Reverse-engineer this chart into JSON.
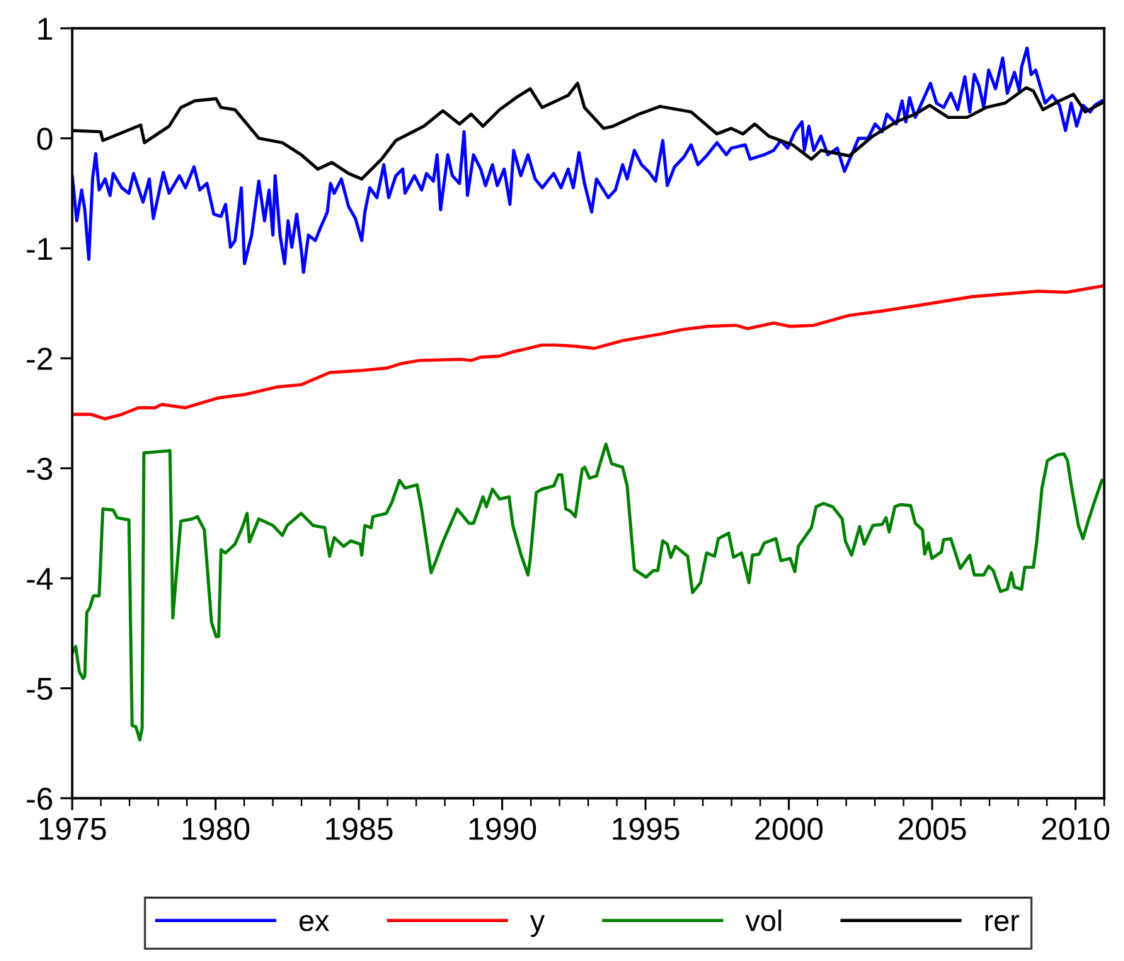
{
  "chart_data": {
    "type": "line",
    "xlim": [
      1975,
      2011
    ],
    "xticks": [
      1975,
      1980,
      1985,
      1990,
      1995,
      2000,
      2005,
      2010
    ],
    "ylim": [
      -6,
      1
    ],
    "yticks": [
      -6,
      -5,
      -4,
      -3,
      -2,
      -1,
      0,
      1
    ],
    "grid": false,
    "legend": "bottom",
    "marker": "none",
    "line_style": "solid",
    "series": [
      {
        "name": "ex",
        "color": "#0000ff",
        "x": [
          1975.0,
          1975.16,
          1975.33,
          1975.44,
          1975.58,
          1975.71,
          1975.82,
          1975.94,
          1976.15,
          1976.32,
          1976.43,
          1976.73,
          1976.98,
          1977.14,
          1977.47,
          1977.69,
          1977.83,
          1978.18,
          1978.38,
          1978.74,
          1978.95,
          1979.25,
          1979.45,
          1979.7,
          1979.94,
          1980.19,
          1980.35,
          1980.52,
          1980.68,
          1980.9,
          1981.01,
          1981.26,
          1981.51,
          1981.71,
          1981.87,
          1982.0,
          1982.08,
          1982.25,
          1982.41,
          1982.53,
          1982.66,
          1982.83,
          1982.99,
          1983.07,
          1983.24,
          1983.48,
          1983.65,
          1983.9,
          1984.01,
          1984.14,
          1984.39,
          1984.64,
          1984.88,
          1985.1,
          1985.21,
          1985.38,
          1985.63,
          1985.87,
          1986.04,
          1986.29,
          1986.53,
          1986.61,
          1986.94,
          1987.19,
          1987.36,
          1987.6,
          1987.73,
          1987.85,
          1988.1,
          1988.26,
          1988.51,
          1988.67,
          1988.79,
          1989.0,
          1989.25,
          1989.42,
          1989.66,
          1989.83,
          1990.07,
          1990.27,
          1990.4,
          1990.65,
          1990.9,
          1991.15,
          1991.4,
          1991.64,
          1991.8,
          1992.05,
          1992.3,
          1992.48,
          1992.68,
          1992.87,
          1993.12,
          1993.29,
          1993.7,
          1993.95,
          1994.2,
          1994.36,
          1994.61,
          1994.86,
          1995.1,
          1995.35,
          1995.6,
          1995.76,
          1996.01,
          1996.34,
          1996.59,
          1996.83,
          1997.16,
          1997.49,
          1997.82,
          1997.99,
          1998.48,
          1998.65,
          1999.14,
          1999.47,
          1999.72,
          1999.96,
          2000.21,
          2000.46,
          2000.54,
          2000.7,
          2000.87,
          2001.12,
          2001.36,
          2001.69,
          2001.94,
          2002.19,
          2002.43,
          2002.76,
          2003.01,
          2003.26,
          2003.42,
          2003.75,
          2003.95,
          2004.08,
          2004.21,
          2004.41,
          2004.94,
          2005.15,
          2005.4,
          2005.65,
          2005.89,
          2006.14,
          2006.31,
          2006.47,
          2006.64,
          2006.8,
          2006.97,
          2007.21,
          2007.46,
          2007.62,
          2007.87,
          2008.04,
          2008.12,
          2008.31,
          2008.45,
          2008.61,
          2008.94,
          2009.19,
          2009.44,
          2009.65,
          2009.85,
          2010.04,
          2010.26,
          2010.51,
          2010.67,
          2010.92
        ],
        "values": [
          -0.34,
          -0.75,
          -0.47,
          -0.65,
          -1.1,
          -0.37,
          -0.14,
          -0.47,
          -0.37,
          -0.52,
          -0.32,
          -0.45,
          -0.5,
          -0.32,
          -0.58,
          -0.37,
          -0.73,
          -0.31,
          -0.5,
          -0.34,
          -0.45,
          -0.26,
          -0.47,
          -0.41,
          -0.69,
          -0.71,
          -0.6,
          -0.99,
          -0.93,
          -0.45,
          -1.14,
          -0.88,
          -0.39,
          -0.75,
          -0.47,
          -0.88,
          -0.34,
          -0.88,
          -1.14,
          -0.75,
          -0.99,
          -0.69,
          -1.01,
          -1.22,
          -0.88,
          -0.93,
          -0.82,
          -0.67,
          -0.41,
          -0.5,
          -0.37,
          -0.62,
          -0.73,
          -0.93,
          -0.67,
          -0.45,
          -0.54,
          -0.24,
          -0.54,
          -0.34,
          -0.28,
          -0.5,
          -0.34,
          -0.47,
          -0.32,
          -0.39,
          -0.15,
          -0.65,
          -0.15,
          -0.34,
          -0.41,
          0.06,
          -0.52,
          -0.15,
          -0.28,
          -0.43,
          -0.24,
          -0.43,
          -0.28,
          -0.6,
          -0.11,
          -0.34,
          -0.15,
          -0.37,
          -0.45,
          -0.37,
          -0.32,
          -0.45,
          -0.28,
          -0.45,
          -0.13,
          -0.41,
          -0.67,
          -0.37,
          -0.54,
          -0.47,
          -0.24,
          -0.37,
          -0.11,
          -0.24,
          -0.3,
          -0.39,
          -0.02,
          -0.43,
          -0.26,
          -0.17,
          -0.06,
          -0.24,
          -0.15,
          -0.04,
          -0.15,
          -0.09,
          -0.06,
          -0.19,
          -0.15,
          -0.11,
          -0.02,
          -0.09,
          0.06,
          0.15,
          -0.11,
          0.11,
          -0.11,
          0.02,
          -0.15,
          -0.09,
          -0.3,
          -0.15,
          0.0,
          0.0,
          0.13,
          0.06,
          0.22,
          0.13,
          0.34,
          0.15,
          0.37,
          0.19,
          0.5,
          0.32,
          0.28,
          0.41,
          0.26,
          0.56,
          0.24,
          0.58,
          0.47,
          0.28,
          0.62,
          0.45,
          0.73,
          0.41,
          0.6,
          0.43,
          0.65,
          0.82,
          0.58,
          0.62,
          0.32,
          0.39,
          0.3,
          0.07,
          0.32,
          0.11,
          0.3,
          0.24,
          0.3,
          0.34
        ]
      },
      {
        "name": "y",
        "color": "#ff0000",
        "x": [
          1975.0,
          1975.66,
          1976.15,
          1976.73,
          1977.31,
          1977.88,
          1978.13,
          1978.95,
          1980.11,
          1981.01,
          1982.17,
          1982.99,
          1983.98,
          1985.13,
          1985.96,
          1986.45,
          1987.11,
          1988.59,
          1988.92,
          1989.25,
          1989.91,
          1990.4,
          1990.9,
          1991.39,
          1991.89,
          1992.55,
          1993.2,
          1994.2,
          1995.51,
          1996.26,
          1997.16,
          1998.15,
          1998.56,
          1999.47,
          2000.05,
          2000.87,
          2002.11,
          2003.26,
          2004.5,
          2006.39,
          2008.69,
          2009.68,
          2011.0
        ],
        "values": [
          -2.51,
          -2.51,
          -2.55,
          -2.51,
          -2.45,
          -2.45,
          -2.42,
          -2.45,
          -2.36,
          -2.33,
          -2.26,
          -2.24,
          -2.13,
          -2.11,
          -2.09,
          -2.05,
          -2.02,
          -2.01,
          -2.02,
          -1.99,
          -1.98,
          -1.94,
          -1.91,
          -1.88,
          -1.88,
          -1.89,
          -1.91,
          -1.84,
          -1.78,
          -1.74,
          -1.71,
          -1.7,
          -1.73,
          -1.68,
          -1.71,
          -1.7,
          -1.61,
          -1.57,
          -1.52,
          -1.44,
          -1.39,
          -1.4,
          -1.34
        ]
      },
      {
        "name": "vol",
        "color": "#008000",
        "x": [
          1975.0,
          1975.12,
          1975.25,
          1975.38,
          1975.44,
          1975.51,
          1975.61,
          1975.74,
          1975.94,
          1976.07,
          1976.43,
          1976.57,
          1976.98,
          1977.09,
          1977.22,
          1977.36,
          1977.44,
          1977.5,
          1978.41,
          1978.51,
          1978.62,
          1978.79,
          1979.2,
          1979.37,
          1979.61,
          1979.86,
          1980.02,
          1980.11,
          1980.19,
          1980.35,
          1980.68,
          1980.93,
          1981.1,
          1981.18,
          1981.51,
          1982.0,
          1982.33,
          1982.5,
          1982.99,
          1983.4,
          1983.81,
          1983.98,
          1984.14,
          1984.47,
          1984.72,
          1985.05,
          1985.1,
          1985.21,
          1985.43,
          1985.49,
          1985.96,
          1986.15,
          1986.42,
          1986.61,
          1987.03,
          1987.19,
          1987.52,
          1987.69,
          1987.93,
          1988.43,
          1988.84,
          1989.0,
          1989.33,
          1989.45,
          1989.66,
          1989.91,
          1990.24,
          1990.37,
          1990.65,
          1990.9,
          1990.98,
          1991.19,
          1991.39,
          1991.8,
          1991.96,
          1992.08,
          1992.22,
          1992.38,
          1992.55,
          1992.79,
          1992.88,
          1993.04,
          1993.29,
          1993.41,
          1993.62,
          1993.82,
          1994.2,
          1994.36,
          1994.61,
          1995.02,
          1995.27,
          1995.43,
          1995.6,
          1995.76,
          1995.88,
          1996.04,
          1996.47,
          1996.64,
          1996.92,
          1997.13,
          1997.41,
          1997.54,
          1997.9,
          1998.07,
          1998.35,
          1998.61,
          1998.73,
          1998.97,
          1999.14,
          1999.55,
          1999.72,
          2000.05,
          2000.21,
          2000.33,
          2000.79,
          2000.95,
          2001.2,
          2001.53,
          2001.86,
          2001.97,
          2002.19,
          2002.47,
          2002.63,
          2002.93,
          2003.26,
          2003.39,
          2003.5,
          2003.7,
          2003.88,
          2004.25,
          2004.41,
          2004.66,
          2004.74,
          2004.87,
          2004.99,
          2005.32,
          2005.4,
          2005.65,
          2005.98,
          2006.31,
          2006.47,
          2006.8,
          2006.97,
          2007.13,
          2007.38,
          2007.62,
          2007.76,
          2007.87,
          2008.12,
          2008.23,
          2008.53,
          2008.65,
          2008.83,
          2009.02,
          2009.35,
          2009.6,
          2009.72,
          2009.85,
          2010.1,
          2010.26,
          2010.42,
          2010.64,
          2010.92
        ],
        "values": [
          -4.68,
          -4.62,
          -4.85,
          -4.91,
          -4.89,
          -4.31,
          -4.27,
          -4.16,
          -4.16,
          -3.37,
          -3.38,
          -3.45,
          -3.47,
          -5.34,
          -5.35,
          -5.47,
          -5.36,
          -2.86,
          -2.84,
          -4.36,
          -4.01,
          -3.48,
          -3.46,
          -3.44,
          -3.56,
          -4.4,
          -4.53,
          -4.53,
          -3.74,
          -3.77,
          -3.69,
          -3.54,
          -3.41,
          -3.67,
          -3.46,
          -3.52,
          -3.61,
          -3.52,
          -3.41,
          -3.52,
          -3.54,
          -3.8,
          -3.63,
          -3.71,
          -3.66,
          -3.69,
          -3.79,
          -3.52,
          -3.54,
          -3.44,
          -3.41,
          -3.31,
          -3.11,
          -3.18,
          -3.15,
          -3.37,
          -3.95,
          -3.84,
          -3.67,
          -3.37,
          -3.5,
          -3.5,
          -3.26,
          -3.35,
          -3.19,
          -3.28,
          -3.26,
          -3.52,
          -3.78,
          -3.97,
          -3.82,
          -3.22,
          -3.19,
          -3.16,
          -3.06,
          -3.06,
          -3.37,
          -3.39,
          -3.44,
          -3.01,
          -2.99,
          -3.09,
          -3.07,
          -2.96,
          -2.78,
          -2.96,
          -2.99,
          -3.16,
          -3.92,
          -3.99,
          -3.93,
          -3.93,
          -3.66,
          -3.69,
          -3.81,
          -3.71,
          -3.8,
          -4.13,
          -4.04,
          -3.77,
          -3.8,
          -3.64,
          -3.59,
          -3.81,
          -3.77,
          -4.04,
          -3.79,
          -3.78,
          -3.68,
          -3.64,
          -3.84,
          -3.82,
          -3.94,
          -3.71,
          -3.54,
          -3.35,
          -3.32,
          -3.35,
          -3.46,
          -3.66,
          -3.79,
          -3.53,
          -3.69,
          -3.52,
          -3.51,
          -3.45,
          -3.58,
          -3.35,
          -3.33,
          -3.34,
          -3.5,
          -3.56,
          -3.78,
          -3.68,
          -3.82,
          -3.76,
          -3.65,
          -3.64,
          -3.91,
          -3.79,
          -3.97,
          -3.97,
          -3.89,
          -3.93,
          -4.12,
          -4.1,
          -3.95,
          -4.08,
          -4.1,
          -3.9,
          -3.9,
          -3.66,
          -3.18,
          -2.93,
          -2.88,
          -2.87,
          -2.93,
          -3.15,
          -3.52,
          -3.64,
          -3.5,
          -3.32,
          -3.11
        ]
      },
      {
        "name": "rer",
        "color": "#000000",
        "x": [
          1975.0,
          1975.99,
          1976.07,
          1977.39,
          1977.52,
          1978.38,
          1978.79,
          1979.28,
          1980.02,
          1980.19,
          1980.68,
          1981.51,
          1982.33,
          1982.99,
          1983.57,
          1984.06,
          1984.64,
          1985.1,
          1985.79,
          1986.29,
          1987.27,
          1987.93,
          1988.51,
          1988.92,
          1989.33,
          1989.91,
          1990.49,
          1990.98,
          1991.39,
          1991.89,
          1992.3,
          1992.63,
          1992.87,
          1993.54,
          1993.87,
          1994.77,
          1995.51,
          1996.59,
          1997.49,
          1997.99,
          1998.4,
          1998.81,
          1999.3,
          2000.13,
          2000.79,
          2001.12,
          2002.11,
          2002.93,
          2003.75,
          2004.41,
          2004.91,
          2005.56,
          2006.22,
          2006.88,
          2007.54,
          2008.28,
          2008.53,
          2008.86,
          2009.44,
          2009.93,
          2010.34,
          2010.92
        ],
        "values": [
          0.07,
          0.06,
          -0.02,
          0.12,
          -0.04,
          0.11,
          0.28,
          0.34,
          0.36,
          0.28,
          0.26,
          0.0,
          -0.04,
          -0.15,
          -0.28,
          -0.22,
          -0.32,
          -0.37,
          -0.19,
          -0.02,
          0.11,
          0.25,
          0.13,
          0.22,
          0.11,
          0.26,
          0.37,
          0.45,
          0.28,
          0.34,
          0.39,
          0.5,
          0.28,
          0.09,
          0.11,
          0.22,
          0.29,
          0.24,
          0.04,
          0.09,
          0.04,
          0.13,
          0.02,
          -0.06,
          -0.19,
          -0.11,
          -0.16,
          0.02,
          0.15,
          0.22,
          0.3,
          0.19,
          0.19,
          0.28,
          0.32,
          0.46,
          0.43,
          0.26,
          0.34,
          0.4,
          0.24,
          0.32
        ]
      }
    ]
  }
}
